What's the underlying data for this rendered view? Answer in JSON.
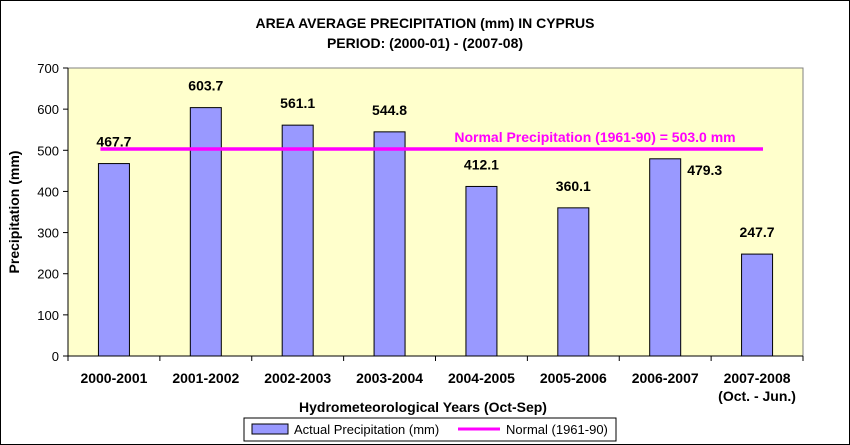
{
  "chart_data": {
    "type": "bar",
    "title": "AREA AVERAGE PRECIPITATION (mm) IN CYPRUS",
    "subtitle": "PERIOD: (2000-01) - (2007-08)",
    "xlabel": "Hydrometeorological Years (Oct-Sep)",
    "ylabel": "Precipitation (mm)",
    "ylim": [
      0,
      700
    ],
    "yticks": [
      "0",
      "100",
      "200",
      "300",
      "400",
      "500",
      "600",
      "700"
    ],
    "categories": [
      "2000-2001",
      "2001-2002",
      "2002-2003",
      "2003-2004",
      "2004-2005",
      "2005-2006",
      "2006-2007",
      "2007-2008"
    ],
    "category_note": "(Oct. - Jun.)",
    "series": [
      {
        "name": "Actual Precipitation (mm)",
        "values": [
          467.7,
          603.7,
          561.1,
          544.8,
          412.1,
          360.1,
          479.3,
          247.7
        ],
        "labels": [
          "467.7",
          "603.7",
          "561.1",
          "544.8",
          "412.1",
          "360.1",
          "479.3",
          "247.7"
        ]
      }
    ],
    "reference_line": {
      "name": "Normal (1961-90)",
      "value": 503.0,
      "label": "Normal Precipitation (1961-90) = 503.0 mm"
    },
    "grid": false,
    "legend_position": "bottom",
    "colors": {
      "plot_background": "#ffffcc",
      "bar_fill": "#9999ff",
      "bar_stroke": "#000000",
      "normal_line": "#ff00ff",
      "page_background": "#ffffff"
    }
  }
}
